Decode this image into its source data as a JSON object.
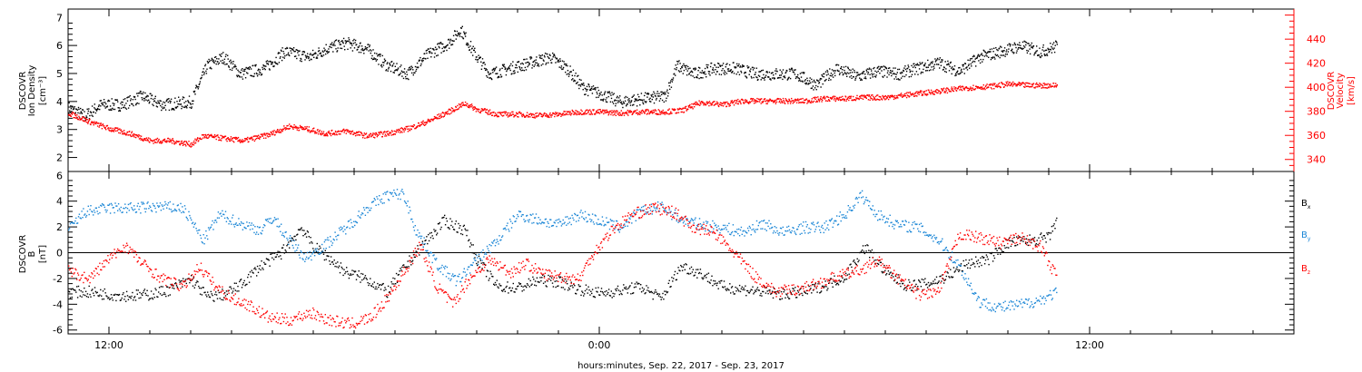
{
  "x_title": "hours:minutes, Sep. 22, 2017 - Sep. 23, 2017",
  "x_ticks": [
    {
      "t": 12,
      "label": "12:00"
    },
    {
      "t": 24,
      "label": "0:00"
    },
    {
      "t": 36,
      "label": "12:00"
    }
  ],
  "x_range_hours": [
    11.0,
    41.0
  ],
  "colors": {
    "black": "#000000",
    "red": "#ff0000",
    "blue": "#1a86d6"
  },
  "chart_data": [
    {
      "type": "scatter",
      "panel": "plasma",
      "ylabel_left": [
        "DSCOVR",
        "Ion Density",
        "[cm⁻³]"
      ],
      "ylabel_right": [
        "DSCOVR",
        "Velocity",
        "[km/s]"
      ],
      "ylim_left": [
        1.5,
        7.3
      ],
      "yticks_left": [
        2,
        3,
        4,
        5,
        6,
        7
      ],
      "ylim_right": [
        330,
        465
      ],
      "yticks_right": [
        340,
        360,
        380,
        400,
        420,
        440
      ],
      "series": [
        {
          "axis": "left",
          "color": "#000000",
          "knots": [
            [
              11.0,
              3.8
            ],
            [
              11.4,
              3.5
            ],
            [
              11.8,
              3.9
            ],
            [
              12.3,
              3.9
            ],
            [
              12.8,
              4.2
            ],
            [
              13.3,
              3.9
            ],
            [
              14.0,
              4.0
            ],
            [
              14.4,
              5.3
            ],
            [
              14.8,
              5.6
            ],
            [
              15.2,
              5.0
            ],
            [
              15.8,
              5.2
            ],
            [
              16.3,
              5.8
            ],
            [
              16.9,
              5.6
            ],
            [
              17.3,
              5.9
            ],
            [
              17.8,
              6.1
            ],
            [
              18.3,
              5.9
            ],
            [
              18.8,
              5.3
            ],
            [
              19.3,
              5.0
            ],
            [
              19.8,
              5.7
            ],
            [
              20.3,
              6.1
            ],
            [
              20.6,
              6.6
            ],
            [
              20.9,
              5.8
            ],
            [
              21.3,
              5.0
            ],
            [
              21.8,
              5.2
            ],
            [
              22.3,
              5.4
            ],
            [
              22.8,
              5.6
            ],
            [
              23.2,
              5.2
            ],
            [
              23.6,
              4.5
            ],
            [
              24.0,
              4.3
            ],
            [
              24.5,
              4.0
            ],
            [
              25.0,
              4.1
            ],
            [
              25.6,
              4.2
            ],
            [
              25.9,
              5.3
            ],
            [
              26.3,
              5.0
            ],
            [
              26.8,
              5.2
            ],
            [
              27.3,
              5.2
            ],
            [
              27.8,
              5.0
            ],
            [
              28.3,
              5.0
            ],
            [
              28.8,
              5.0
            ],
            [
              29.3,
              4.6
            ],
            [
              29.8,
              5.2
            ],
            [
              30.3,
              4.9
            ],
            [
              30.8,
              5.1
            ],
            [
              31.3,
              5.0
            ],
            [
              31.8,
              5.2
            ],
            [
              32.3,
              5.4
            ],
            [
              32.8,
              5.1
            ],
            [
              33.3,
              5.6
            ],
            [
              33.8,
              5.8
            ],
            [
              34.3,
              6.0
            ],
            [
              34.8,
              5.8
            ],
            [
              35.2,
              6.0
            ]
          ]
        },
        {
          "axis": "right",
          "color": "#ff0000",
          "knots": [
            [
              11.0,
              379
            ],
            [
              11.5,
              372
            ],
            [
              12.0,
              366
            ],
            [
              12.5,
              362
            ],
            [
              13.0,
              356
            ],
            [
              13.5,
              356
            ],
            [
              14.0,
              353
            ],
            [
              14.3,
              360
            ],
            [
              14.8,
              358
            ],
            [
              15.3,
              356
            ],
            [
              15.9,
              361
            ],
            [
              16.4,
              368
            ],
            [
              16.8,
              366
            ],
            [
              17.3,
              362
            ],
            [
              17.8,
              364
            ],
            [
              18.3,
              360
            ],
            [
              18.8,
              362
            ],
            [
              19.3,
              366
            ],
            [
              19.8,
              372
            ],
            [
              20.3,
              380
            ],
            [
              20.7,
              387
            ],
            [
              21.0,
              382
            ],
            [
              21.5,
              378
            ],
            [
              22.0,
              378
            ],
            [
              22.5,
              377
            ],
            [
              23.0,
              378
            ],
            [
              23.5,
              380
            ],
            [
              24.0,
              380
            ],
            [
              24.5,
              379
            ],
            [
              25.0,
              380
            ],
            [
              25.5,
              380
            ],
            [
              26.0,
              381
            ],
            [
              26.5,
              388
            ],
            [
              27.0,
              386
            ],
            [
              27.5,
              389
            ],
            [
              28.0,
              389
            ],
            [
              28.5,
              389
            ],
            [
              29.0,
              389
            ],
            [
              29.5,
              391
            ],
            [
              30.0,
              391
            ],
            [
              30.5,
              392
            ],
            [
              31.0,
              392
            ],
            [
              31.5,
              394
            ],
            [
              32.0,
              396
            ],
            [
              32.5,
              398
            ],
            [
              33.0,
              400
            ],
            [
              33.5,
              401
            ],
            [
              34.0,
              403
            ],
            [
              34.5,
              402
            ],
            [
              35.2,
              402
            ]
          ]
        }
      ]
    },
    {
      "type": "scatter",
      "panel": "magnetic-field",
      "ylabel_left": [
        "DSCOVR",
        "B",
        "[nT]"
      ],
      "ylim_left": [
        -6.3,
        6.3
      ],
      "yticks_left": [
        -6,
        -4,
        -2,
        0,
        2,
        4,
        6
      ],
      "zero_line": true,
      "series": [
        {
          "name": "Bx",
          "label_main": "B",
          "label_sub": "x",
          "color": "#000000",
          "knots": [
            [
              11.0,
              -3.0
            ],
            [
              11.5,
              -3.0
            ],
            [
              12.0,
              -3.2
            ],
            [
              12.5,
              -3.3
            ],
            [
              13.0,
              -3.2
            ],
            [
              13.5,
              -2.8
            ],
            [
              14.0,
              -2.0
            ],
            [
              14.4,
              -3.4
            ],
            [
              14.8,
              -3.2
            ],
            [
              15.2,
              -2.5
            ],
            [
              15.7,
              -1.0
            ],
            [
              16.2,
              0.0
            ],
            [
              16.7,
              2.0
            ],
            [
              17.0,
              0.5
            ],
            [
              17.3,
              -0.2
            ],
            [
              17.8,
              -1.5
            ],
            [
              18.3,
              -2.0
            ],
            [
              18.8,
              -3.0
            ],
            [
              19.2,
              -1.2
            ],
            [
              19.7,
              0.8
            ],
            [
              20.2,
              2.5
            ],
            [
              20.7,
              1.8
            ],
            [
              21.0,
              -0.5
            ],
            [
              21.5,
              -2.6
            ],
            [
              22.0,
              -2.7
            ],
            [
              22.5,
              -2.1
            ],
            [
              23.0,
              -2.2
            ],
            [
              23.5,
              -2.8
            ],
            [
              24.0,
              -3.1
            ],
            [
              24.5,
              -2.9
            ],
            [
              25.0,
              -2.6
            ],
            [
              25.5,
              -3.5
            ],
            [
              26.0,
              -1.0
            ],
            [
              26.5,
              -1.6
            ],
            [
              27.0,
              -2.6
            ],
            [
              27.5,
              -2.8
            ],
            [
              28.0,
              -3.0
            ],
            [
              28.5,
              -3.2
            ],
            [
              29.0,
              -3.0
            ],
            [
              29.5,
              -2.5
            ],
            [
              30.0,
              -1.8
            ],
            [
              30.5,
              0.5
            ],
            [
              31.0,
              -1.5
            ],
            [
              31.5,
              -2.5
            ],
            [
              32.0,
              -2.4
            ],
            [
              32.5,
              -1.8
            ],
            [
              33.0,
              -0.8
            ],
            [
              33.5,
              -0.5
            ],
            [
              34.0,
              0.8
            ],
            [
              34.5,
              1.0
            ],
            [
              35.0,
              1.2
            ],
            [
              35.2,
              2.8
            ]
          ]
        },
        {
          "name": "By",
          "label_main": "B",
          "label_sub": "y",
          "color": "#1a86d6",
          "knots": [
            [
              11.0,
              1.8
            ],
            [
              11.4,
              3.2
            ],
            [
              12.0,
              3.5
            ],
            [
              12.6,
              3.5
            ],
            [
              13.2,
              3.6
            ],
            [
              13.8,
              3.5
            ],
            [
              14.3,
              1.0
            ],
            [
              14.7,
              3.0
            ],
            [
              15.2,
              2.3
            ],
            [
              15.7,
              1.8
            ],
            [
              16.0,
              2.8
            ],
            [
              16.4,
              1.0
            ],
            [
              16.8,
              -0.4
            ],
            [
              17.3,
              0.7
            ],
            [
              17.8,
              2.0
            ],
            [
              18.3,
              3.5
            ],
            [
              18.8,
              4.5
            ],
            [
              19.2,
              4.6
            ],
            [
              19.5,
              1.8
            ],
            [
              20.0,
              -0.8
            ],
            [
              20.5,
              -2.2
            ],
            [
              21.0,
              -0.5
            ],
            [
              21.5,
              1.0
            ],
            [
              22.0,
              3.0
            ],
            [
              22.5,
              2.6
            ],
            [
              23.0,
              2.2
            ],
            [
              23.5,
              3.0
            ],
            [
              24.0,
              2.5
            ],
            [
              24.5,
              2.0
            ],
            [
              25.0,
              3.2
            ],
            [
              25.5,
              3.6
            ],
            [
              26.0,
              2.6
            ],
            [
              26.5,
              2.2
            ],
            [
              27.0,
              2.0
            ],
            [
              27.5,
              1.6
            ],
            [
              28.0,
              2.3
            ],
            [
              28.5,
              1.6
            ],
            [
              29.0,
              2.0
            ],
            [
              29.5,
              2.0
            ],
            [
              30.0,
              3.0
            ],
            [
              30.4,
              4.5
            ],
            [
              30.8,
              3.0
            ],
            [
              31.3,
              2.2
            ],
            [
              31.8,
              2.0
            ],
            [
              32.3,
              1.0
            ],
            [
              32.8,
              -1.0
            ],
            [
              33.3,
              -3.8
            ],
            [
              33.8,
              -4.2
            ],
            [
              34.3,
              -4.0
            ],
            [
              34.8,
              -3.6
            ],
            [
              35.2,
              -3.0
            ]
          ]
        },
        {
          "name": "Bz",
          "label_main": "B",
          "label_sub": "z",
          "color": "#ff0000",
          "knots": [
            [
              11.0,
              -1.4
            ],
            [
              11.5,
              -2.0
            ],
            [
              12.0,
              -0.4
            ],
            [
              12.4,
              0.6
            ],
            [
              12.8,
              -0.8
            ],
            [
              13.3,
              -2.0
            ],
            [
              13.8,
              -2.6
            ],
            [
              14.2,
              -1.0
            ],
            [
              14.6,
              -2.6
            ],
            [
              15.0,
              -3.5
            ],
            [
              15.4,
              -4.0
            ],
            [
              15.9,
              -5.0
            ],
            [
              16.4,
              -5.2
            ],
            [
              16.9,
              -4.6
            ],
            [
              17.4,
              -5.2
            ],
            [
              17.9,
              -5.5
            ],
            [
              18.4,
              -5.0
            ],
            [
              18.8,
              -3.5
            ],
            [
              19.2,
              -1.5
            ],
            [
              19.6,
              0.6
            ],
            [
              20.0,
              -2.5
            ],
            [
              20.4,
              -4.0
            ],
            [
              20.8,
              -2.0
            ],
            [
              21.3,
              -0.5
            ],
            [
              21.8,
              -1.5
            ],
            [
              22.2,
              -0.8
            ],
            [
              22.6,
              -1.6
            ],
            [
              23.0,
              -1.8
            ],
            [
              23.5,
              -2.0
            ],
            [
              23.8,
              -0.2
            ],
            [
              24.3,
              1.8
            ],
            [
              24.8,
              3.0
            ],
            [
              25.3,
              3.5
            ],
            [
              25.8,
              3.2
            ],
            [
              26.3,
              2.0
            ],
            [
              26.8,
              1.6
            ],
            [
              27.3,
              0.0
            ],
            [
              27.8,
              -1.8
            ],
            [
              28.3,
              -3.0
            ],
            [
              28.8,
              -2.8
            ],
            [
              29.3,
              -2.4
            ],
            [
              29.8,
              -1.8
            ],
            [
              30.3,
              -1.4
            ],
            [
              30.8,
              -0.6
            ],
            [
              31.3,
              -2.0
            ],
            [
              31.8,
              -3.2
            ],
            [
              32.3,
              -3.0
            ],
            [
              32.8,
              1.5
            ],
            [
              33.3,
              1.2
            ],
            [
              33.8,
              0.8
            ],
            [
              34.3,
              1.2
            ],
            [
              34.8,
              0.5
            ],
            [
              35.2,
              -2.0
            ]
          ]
        }
      ]
    }
  ]
}
